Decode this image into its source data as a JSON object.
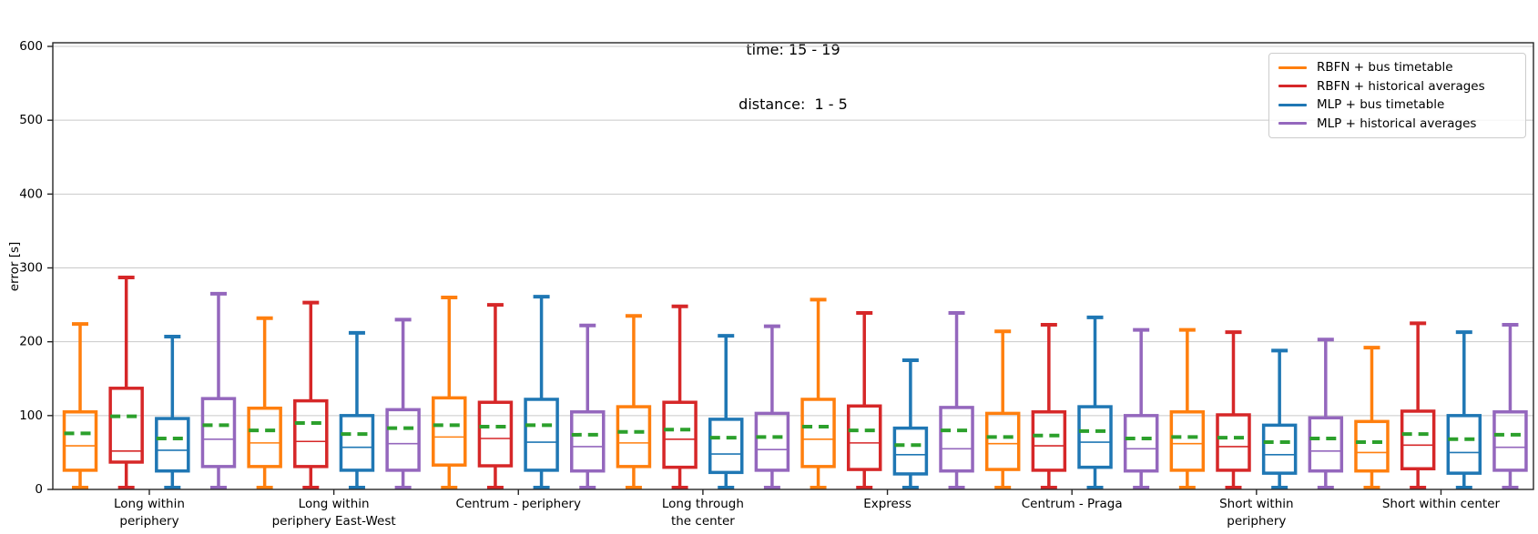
{
  "title": {
    "line1": "time: 15 - 19",
    "line2": "distance:  1 - 5"
  },
  "y_axis": {
    "label": "error [s]",
    "ticks": [
      0,
      100,
      200,
      300,
      400,
      500,
      600
    ]
  },
  "legend": {
    "items": [
      {
        "label": "RBFN + bus timetable",
        "color": "#ff7f0e"
      },
      {
        "label": "RBFN + historical averages",
        "color": "#d62728"
      },
      {
        "label": "MLP + bus timetable",
        "color": "#1f77b4"
      },
      {
        "label": "MLP + historical averages",
        "color": "#9467bd"
      }
    ]
  },
  "chart_data": {
    "type": "boxplot",
    "title": "time: 15 - 19\ndistance:  1 - 5",
    "ylabel": "error [s]",
    "ylim": [
      0,
      605
    ],
    "yticks": [
      0,
      100,
      200,
      300,
      400,
      500,
      600
    ],
    "grid": "horizontal",
    "legend_position": "upper right",
    "mean_line_color": "#2ca02c",
    "mean_line_style": "dashed",
    "median_line": "solid, series color",
    "categories": [
      "Long within periphery",
      "Long within periphery East-West",
      "Centrum - periphery",
      "Long through the center",
      "Express",
      "Centrum - Praga",
      "Short within periphery",
      "Short within center"
    ],
    "category_label_lines": [
      [
        "Long within",
        "periphery"
      ],
      [
        "Long within",
        "periphery East-West"
      ],
      [
        "Centrum - periphery"
      ],
      [
        "Long through",
        "the center"
      ],
      [
        "Express"
      ],
      [
        "Centrum - Praga"
      ],
      [
        "Short within",
        "periphery"
      ],
      [
        "Short within center"
      ]
    ],
    "series": [
      {
        "name": "RBFN + bus timetable",
        "color": "#ff7f0e",
        "boxes": [
          {
            "whislo": 0,
            "q1": 26,
            "med": 59,
            "mean": 76,
            "q3": 105,
            "whishi": 224
          },
          {
            "whislo": 0,
            "q1": 31,
            "med": 63,
            "mean": 80,
            "q3": 110,
            "whishi": 232
          },
          {
            "whislo": 0,
            "q1": 33,
            "med": 71,
            "mean": 87,
            "q3": 124,
            "whishi": 260
          },
          {
            "whislo": 0,
            "q1": 31,
            "med": 63,
            "mean": 78,
            "q3": 112,
            "whishi": 235
          },
          {
            "whislo": 0,
            "q1": 31,
            "med": 68,
            "mean": 85,
            "q3": 122,
            "whishi": 257
          },
          {
            "whislo": 0,
            "q1": 27,
            "med": 62,
            "mean": 71,
            "q3": 103,
            "whishi": 214
          },
          {
            "whislo": 0,
            "q1": 26,
            "med": 62,
            "mean": 71,
            "q3": 105,
            "whishi": 216
          },
          {
            "whislo": 0,
            "q1": 25,
            "med": 50,
            "mean": 64,
            "q3": 92,
            "whishi": 192
          }
        ]
      },
      {
        "name": "RBFN + historical averages",
        "color": "#d62728",
        "boxes": [
          {
            "whislo": 0,
            "q1": 37,
            "med": 52,
            "mean": 99,
            "q3": 137,
            "whishi": 287
          },
          {
            "whislo": 0,
            "q1": 31,
            "med": 65,
            "mean": 90,
            "q3": 120,
            "whishi": 253
          },
          {
            "whislo": 0,
            "q1": 32,
            "med": 69,
            "mean": 85,
            "q3": 118,
            "whishi": 250
          },
          {
            "whislo": 0,
            "q1": 30,
            "med": 68,
            "mean": 81,
            "q3": 118,
            "whishi": 248
          },
          {
            "whislo": 0,
            "q1": 27,
            "med": 63,
            "mean": 80,
            "q3": 113,
            "whishi": 239
          },
          {
            "whislo": 0,
            "q1": 26,
            "med": 59,
            "mean": 73,
            "q3": 105,
            "whishi": 223
          },
          {
            "whislo": 0,
            "q1": 26,
            "med": 58,
            "mean": 70,
            "q3": 101,
            "whishi": 213
          },
          {
            "whislo": 0,
            "q1": 28,
            "med": 60,
            "mean": 75,
            "q3": 106,
            "whishi": 225
          }
        ]
      },
      {
        "name": "MLP + bus timetable",
        "color": "#1f77b4",
        "boxes": [
          {
            "whislo": 0,
            "q1": 25,
            "med": 53,
            "mean": 69,
            "q3": 96,
            "whishi": 207
          },
          {
            "whislo": 0,
            "q1": 26,
            "med": 57,
            "mean": 75,
            "q3": 100,
            "whishi": 212
          },
          {
            "whislo": 0,
            "q1": 26,
            "med": 64,
            "mean": 87,
            "q3": 122,
            "whishi": 261
          },
          {
            "whislo": 0,
            "q1": 23,
            "med": 48,
            "mean": 70,
            "q3": 95,
            "whishi": 208
          },
          {
            "whislo": 0,
            "q1": 21,
            "med": 47,
            "mean": 60,
            "q3": 83,
            "whishi": 175
          },
          {
            "whislo": 0,
            "q1": 30,
            "med": 64,
            "mean": 79,
            "q3": 112,
            "whishi": 233
          },
          {
            "whislo": 0,
            "q1": 22,
            "med": 47,
            "mean": 64,
            "q3": 87,
            "whishi": 188
          },
          {
            "whislo": 0,
            "q1": 22,
            "med": 50,
            "mean": 68,
            "q3": 100,
            "whishi": 213
          }
        ]
      },
      {
        "name": "MLP + historical averages",
        "color": "#9467bd",
        "boxes": [
          {
            "whislo": 0,
            "q1": 31,
            "med": 68,
            "mean": 87,
            "q3": 123,
            "whishi": 265
          },
          {
            "whislo": 0,
            "q1": 26,
            "med": 62,
            "mean": 83,
            "q3": 108,
            "whishi": 230
          },
          {
            "whislo": 0,
            "q1": 25,
            "med": 58,
            "mean": 74,
            "q3": 105,
            "whishi": 222
          },
          {
            "whislo": 0,
            "q1": 26,
            "med": 54,
            "mean": 71,
            "q3": 103,
            "whishi": 221
          },
          {
            "whislo": 0,
            "q1": 25,
            "med": 55,
            "mean": 80,
            "q3": 111,
            "whishi": 239
          },
          {
            "whislo": 0,
            "q1": 25,
            "med": 55,
            "mean": 69,
            "q3": 100,
            "whishi": 216
          },
          {
            "whislo": 0,
            "q1": 25,
            "med": 52,
            "mean": 69,
            "q3": 97,
            "whishi": 203
          },
          {
            "whislo": 0,
            "q1": 26,
            "med": 57,
            "mean": 74,
            "q3": 105,
            "whishi": 223
          }
        ]
      }
    ]
  }
}
